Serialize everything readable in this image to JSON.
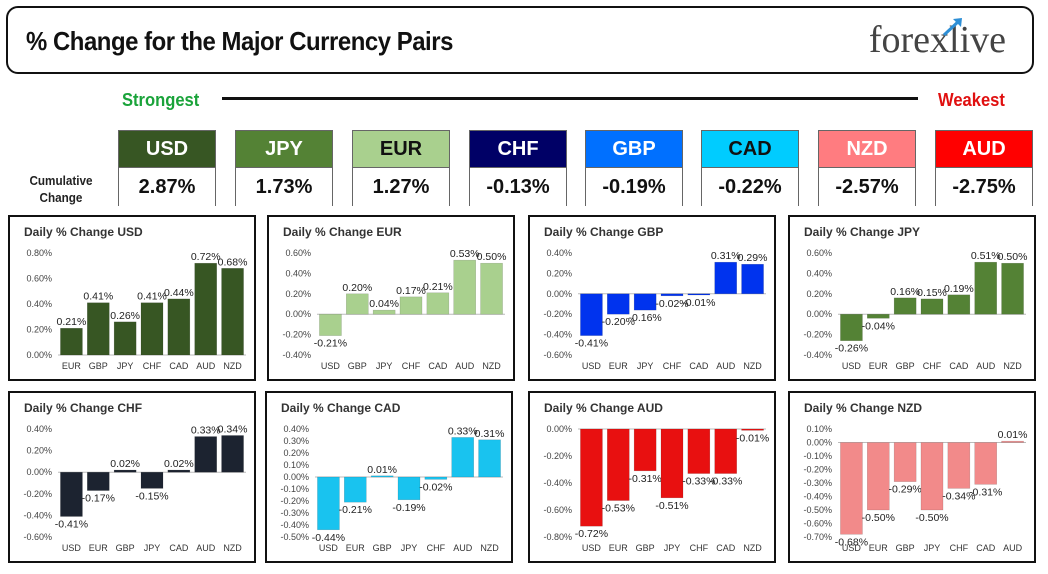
{
  "header": {
    "title": "% Change for the Major Currency Pairs",
    "logo": "forexlive"
  },
  "legend": {
    "strongest": "Strongest",
    "weakest": "Weakest",
    "cumulative": "Cumulative Change"
  },
  "summary": [
    {
      "currency": "USD",
      "value": "2.87%",
      "color": "#375623",
      "text": "#ffffff"
    },
    {
      "currency": "JPY",
      "value": "1.73%",
      "color": "#548235",
      "text": "#ffffff"
    },
    {
      "currency": "EUR",
      "value": "1.27%",
      "color": "#a9d08e",
      "text": "#111111"
    },
    {
      "currency": "CHF",
      "value": "-0.13%",
      "color": "#000066",
      "text": "#ffffff"
    },
    {
      "currency": "GBP",
      "value": "-0.19%",
      "color": "#0070ff",
      "text": "#ffffff"
    },
    {
      "currency": "CAD",
      "value": "-0.22%",
      "color": "#00ccff",
      "text": "#111111"
    },
    {
      "currency": "NZD",
      "value": "-2.57%",
      "color": "#ff7c80",
      "text": "#ffffff"
    },
    {
      "currency": "AUD",
      "value": "-2.75%",
      "color": "#ff0000",
      "text": "#ffffff"
    }
  ],
  "chart_data": [
    {
      "type": "bar",
      "title": "Daily % Change USD",
      "categories": [
        "EUR",
        "GBP",
        "JPY",
        "CHF",
        "CAD",
        "AUD",
        "NZD"
      ],
      "values": [
        0.21,
        0.41,
        0.26,
        0.41,
        0.44,
        0.72,
        0.68
      ],
      "labels": [
        "0.21%",
        "0.41%",
        "0.26%",
        "0.41%",
        "0.44%",
        "0.72%",
        "0.68%"
      ],
      "yticks": [
        "0.80%",
        "0.60%",
        "0.40%",
        "0.20%",
        "0.00%"
      ],
      "ylim": [
        0,
        0.8
      ],
      "color": "#375623"
    },
    {
      "type": "bar",
      "title": "Daily % Change EUR",
      "categories": [
        "USD",
        "GBP",
        "JPY",
        "CHF",
        "CAD",
        "AUD",
        "NZD"
      ],
      "values": [
        -0.21,
        0.2,
        0.04,
        0.17,
        0.21,
        0.53,
        0.5
      ],
      "labels": [
        "-0.21%",
        "0.20%",
        "0.04%",
        "0.17%",
        "0.21%",
        "0.53%",
        "0.50%"
      ],
      "yticks": [
        "0.60%",
        "0.40%",
        "0.20%",
        "0.00%",
        "-0.20%",
        "-0.40%"
      ],
      "ylim": [
        -0.4,
        0.6
      ],
      "color": "#a9d08e"
    },
    {
      "type": "bar",
      "title": "Daily % Change GBP",
      "categories": [
        "USD",
        "EUR",
        "JPY",
        "CHF",
        "CAD",
        "AUD",
        "NZD"
      ],
      "values": [
        -0.41,
        -0.2,
        -0.16,
        -0.02,
        -0.01,
        0.31,
        0.29
      ],
      "labels": [
        "-0.41%",
        "-0.20%",
        "-0.16%",
        "-0.02%",
        "-0.01%",
        "0.31%",
        "0.29%"
      ],
      "yticks": [
        "0.40%",
        "0.20%",
        "0.00%",
        "-0.20%",
        "-0.40%",
        "-0.60%"
      ],
      "ylim": [
        -0.6,
        0.4
      ],
      "color": "#0033ee"
    },
    {
      "type": "bar",
      "title": "Daily % Change JPY",
      "categories": [
        "USD",
        "EUR",
        "GBP",
        "CHF",
        "CAD",
        "AUD",
        "NZD"
      ],
      "values": [
        -0.26,
        -0.04,
        0.16,
        0.15,
        0.19,
        0.51,
        0.5
      ],
      "labels": [
        "-0.26%",
        "-0.04%",
        "0.16%",
        "0.15%",
        "0.19%",
        "0.51%",
        "0.50%"
      ],
      "yticks": [
        "0.60%",
        "0.40%",
        "0.20%",
        "0.00%",
        "-0.20%",
        "-0.40%"
      ],
      "ylim": [
        -0.4,
        0.6
      ],
      "color": "#548235"
    },
    {
      "type": "bar",
      "title": "Daily % Change CHF",
      "categories": [
        "USD",
        "EUR",
        "GBP",
        "JPY",
        "CAD",
        "AUD",
        "NZD"
      ],
      "values": [
        -0.41,
        -0.17,
        0.02,
        -0.15,
        0.02,
        0.33,
        0.34
      ],
      "labels": [
        "-0.41%",
        "-0.17%",
        "0.02%",
        "-0.15%",
        "0.02%",
        "0.33%",
        "0.34%"
      ],
      "yticks": [
        "0.40%",
        "0.20%",
        "0.00%",
        "-0.20%",
        "-0.40%",
        "-0.60%"
      ],
      "ylim": [
        -0.6,
        0.4
      ],
      "color": "#1c2330"
    },
    {
      "type": "bar",
      "title": "Daily % Change CAD",
      "categories": [
        "USD",
        "EUR",
        "GBP",
        "JPY",
        "CHF",
        "AUD",
        "NZD"
      ],
      "values": [
        -0.44,
        -0.21,
        0.01,
        -0.19,
        -0.02,
        0.33,
        0.31
      ],
      "labels": [
        "-0.44%",
        "-0.21%",
        "0.01%",
        "-0.19%",
        "-0.02%",
        "0.33%",
        "0.31%"
      ],
      "yticks": [
        "0.40%",
        "0.30%",
        "0.20%",
        "0.10%",
        "0.00%",
        "-0.10%",
        "-0.20%",
        "-0.30%",
        "-0.40%",
        "-0.50%"
      ],
      "ylim": [
        -0.5,
        0.4
      ],
      "color": "#19c3ef"
    },
    {
      "type": "bar",
      "title": "Daily % Change AUD",
      "categories": [
        "USD",
        "EUR",
        "GBP",
        "JPY",
        "CHF",
        "CAD",
        "NZD"
      ],
      "values": [
        -0.72,
        -0.53,
        -0.31,
        -0.51,
        -0.33,
        -0.33,
        -0.01
      ],
      "labels": [
        "-0.72%",
        "-0.53%",
        "-0.31%",
        "-0.51%",
        "-0.33%",
        "-0.33%",
        "-0.01%"
      ],
      "yticks": [
        "0.00%",
        "-0.20%",
        "-0.40%",
        "-0.60%",
        "-0.80%"
      ],
      "ylim": [
        -0.8,
        0
      ],
      "color": "#e81010"
    },
    {
      "type": "bar",
      "title": "Daily % Change NZD",
      "categories": [
        "USD",
        "EUR",
        "GBP",
        "JPY",
        "CHF",
        "CAD",
        "AUD"
      ],
      "values": [
        -0.68,
        -0.5,
        -0.29,
        -0.5,
        -0.34,
        -0.31,
        0.01
      ],
      "labels": [
        "-0.68%",
        "-0.50%",
        "-0.29%",
        "-0.50%",
        "-0.34%",
        "-0.31%",
        "0.01%"
      ],
      "yticks": [
        "0.10%",
        "0.00%",
        "-0.10%",
        "-0.20%",
        "-0.30%",
        "-0.40%",
        "-0.50%",
        "-0.60%",
        "-0.70%"
      ],
      "ylim": [
        -0.7,
        0.1
      ],
      "color": "#f28a8a"
    }
  ]
}
